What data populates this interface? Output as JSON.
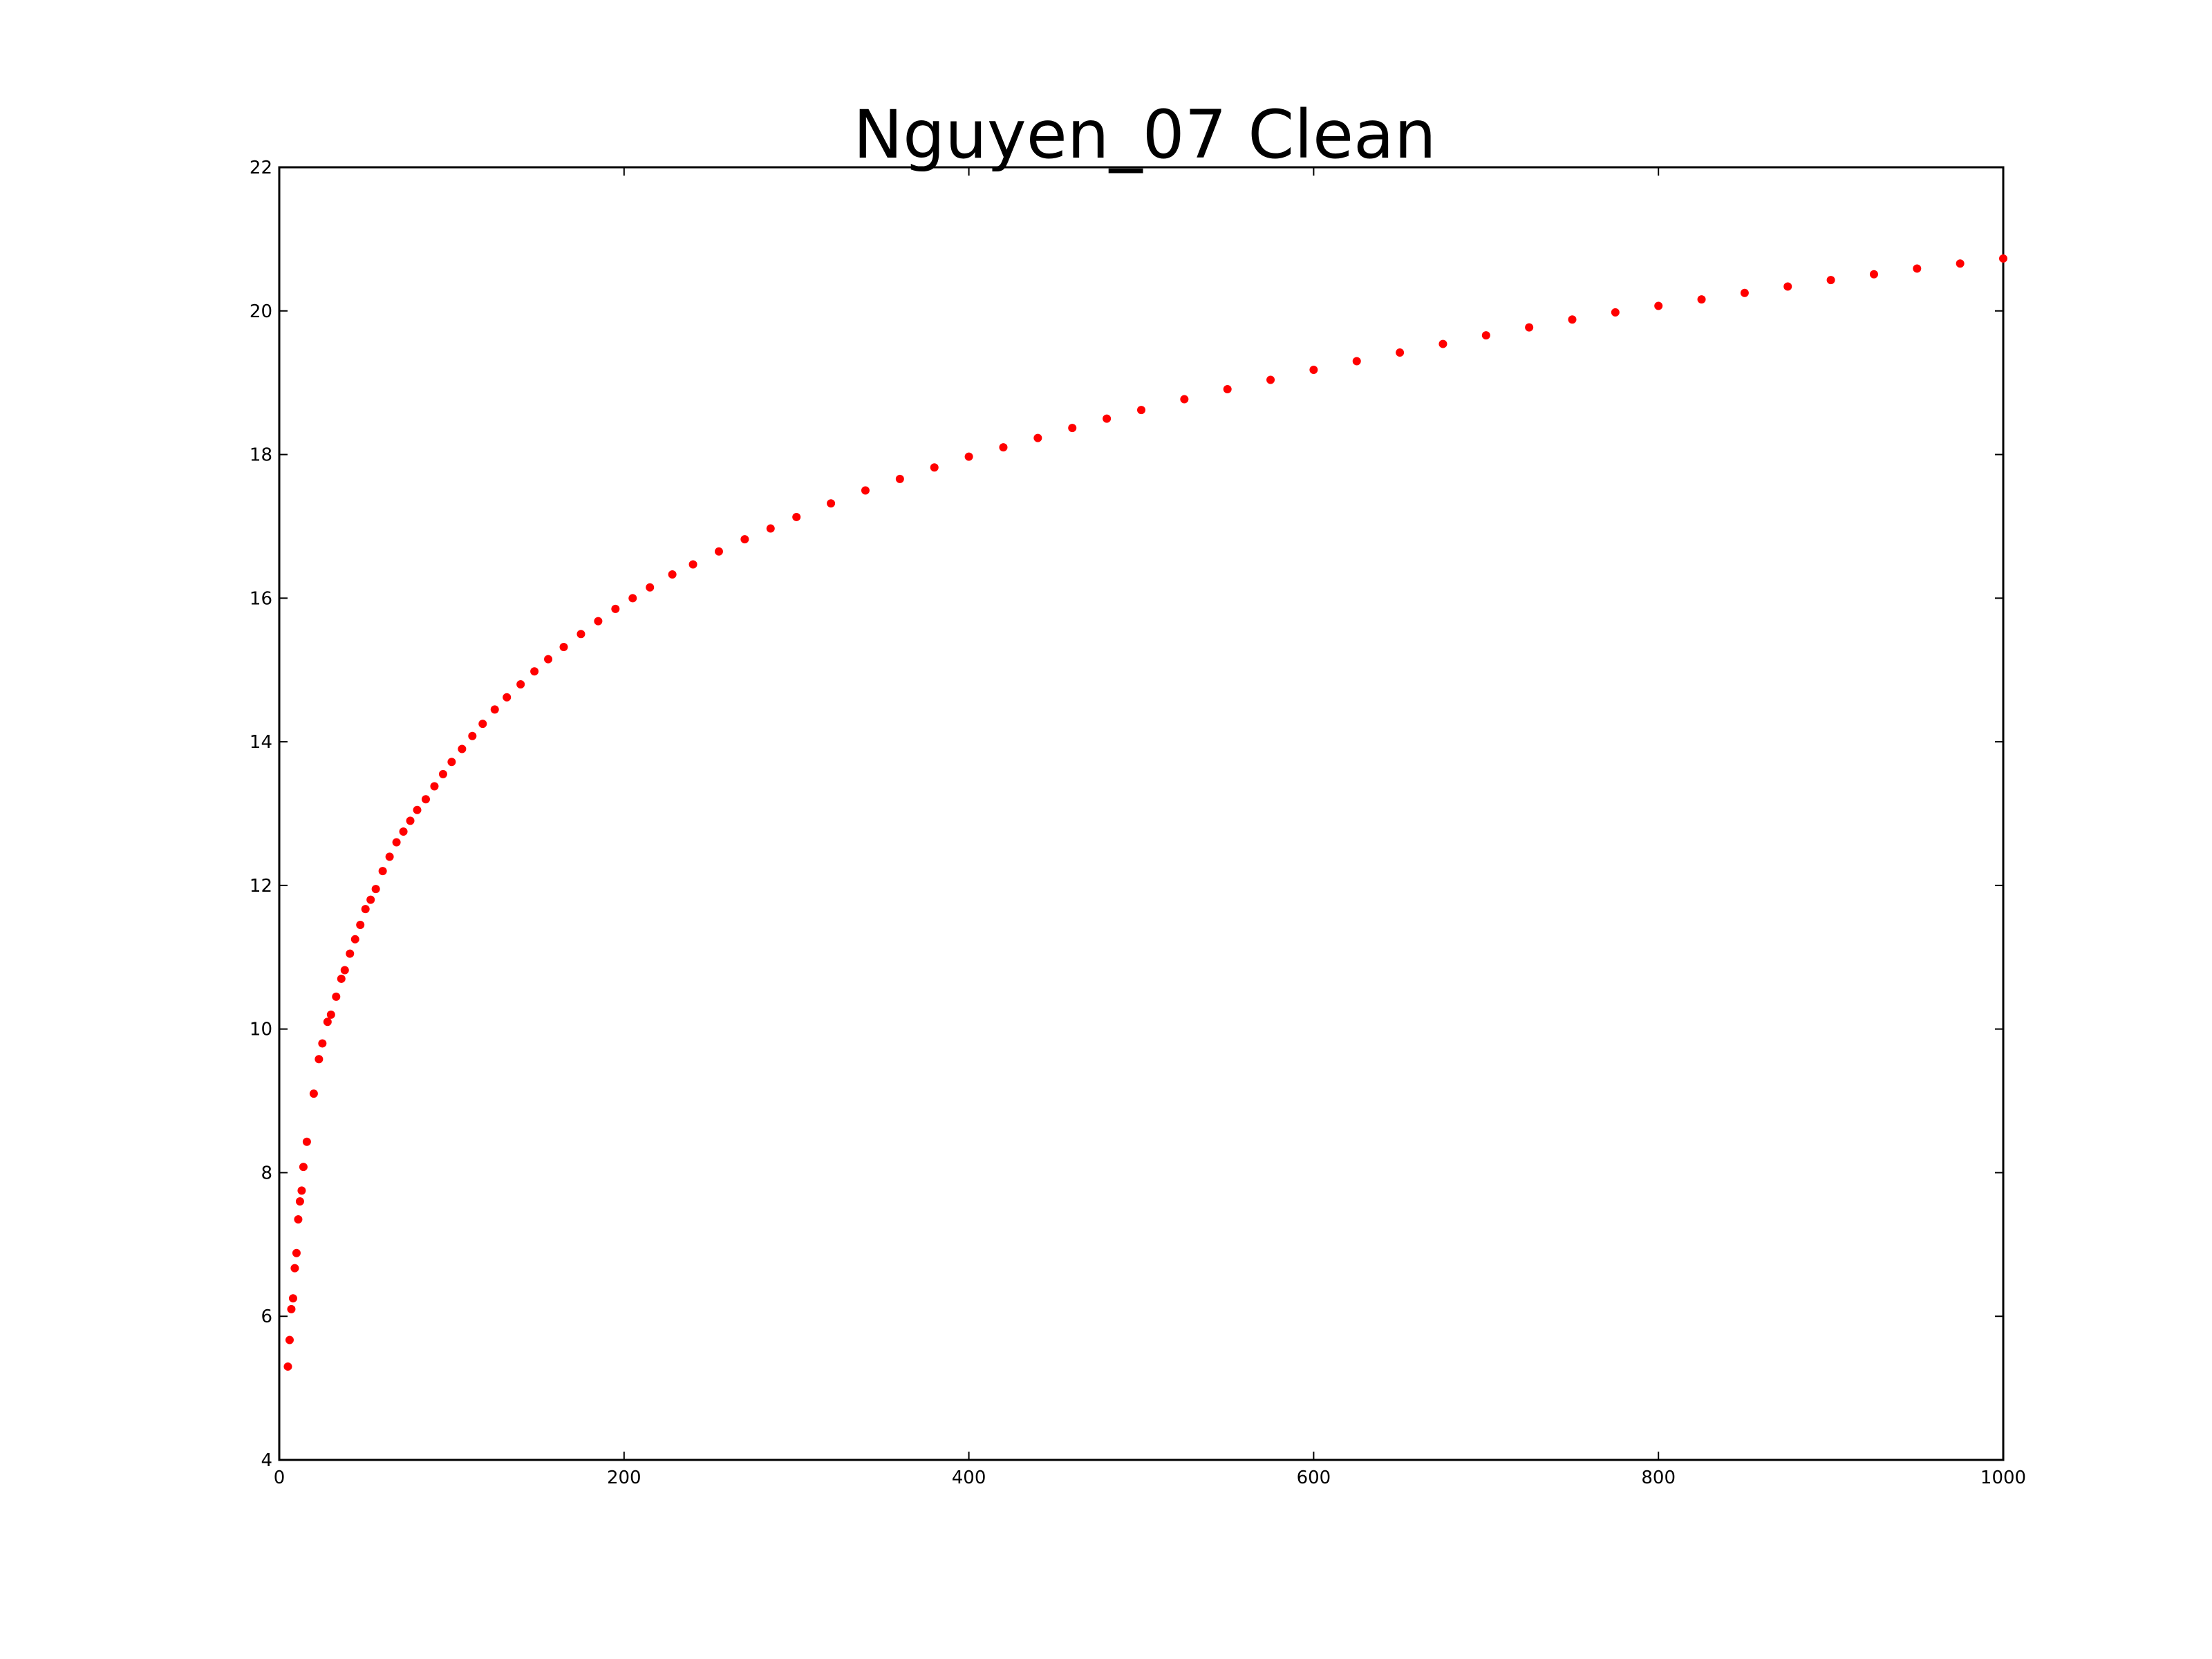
{
  "chart_data": {
    "type": "scatter",
    "title": "Nguyen_07 Clean",
    "xlabel": "",
    "ylabel": "",
    "xlim": [
      0,
      1000
    ],
    "ylim": [
      4,
      22
    ],
    "x_ticks": [
      "0",
      "200",
      "400",
      "600",
      "800",
      "1000"
    ],
    "y_ticks": [
      "4",
      "6",
      "8",
      "10",
      "12",
      "14",
      "16",
      "18",
      "20",
      "22"
    ],
    "grid": false,
    "legend": "none",
    "colors": {
      "marker": "#ff0000"
    },
    "series": [
      {
        "points": [
          [
            5,
            5.3
          ],
          [
            6,
            5.67
          ],
          [
            7,
            6.1
          ],
          [
            8,
            6.25
          ],
          [
            9,
            6.67
          ],
          [
            10,
            6.88
          ],
          [
            11,
            7.35
          ],
          [
            12,
            7.6
          ],
          [
            13,
            7.75
          ],
          [
            14,
            8.08
          ],
          [
            16,
            8.43
          ],
          [
            20,
            9.1
          ],
          [
            23,
            9.58
          ],
          [
            25,
            9.8
          ],
          [
            28,
            10.1
          ],
          [
            30,
            10.2
          ],
          [
            33,
            10.45
          ],
          [
            36,
            10.7
          ],
          [
            38,
            10.82
          ],
          [
            41,
            11.05
          ],
          [
            44,
            11.25
          ],
          [
            47,
            11.45
          ],
          [
            50,
            11.67
          ],
          [
            53,
            11.8
          ],
          [
            56,
            11.95
          ],
          [
            60,
            12.2
          ],
          [
            64,
            12.4
          ],
          [
            68,
            12.6
          ],
          [
            72,
            12.75
          ],
          [
            76,
            12.9
          ],
          [
            80,
            13.05
          ],
          [
            85,
            13.2
          ],
          [
            90,
            13.38
          ],
          [
            95,
            13.55
          ],
          [
            100,
            13.72
          ],
          [
            106,
            13.9
          ],
          [
            112,
            14.08
          ],
          [
            118,
            14.25
          ],
          [
            125,
            14.45
          ],
          [
            132,
            14.62
          ],
          [
            140,
            14.8
          ],
          [
            148,
            14.98
          ],
          [
            156,
            15.15
          ],
          [
            165,
            15.32
          ],
          [
            175,
            15.5
          ],
          [
            185,
            15.68
          ],
          [
            195,
            15.85
          ],
          [
            205,
            16.0
          ],
          [
            215,
            16.15
          ],
          [
            228,
            16.33
          ],
          [
            240,
            16.47
          ],
          [
            255,
            16.65
          ],
          [
            270,
            16.82
          ],
          [
            285,
            16.97
          ],
          [
            300,
            17.13
          ],
          [
            320,
            17.32
          ],
          [
            340,
            17.5
          ],
          [
            360,
            17.66
          ],
          [
            380,
            17.82
          ],
          [
            400,
            17.97
          ],
          [
            420,
            18.1
          ],
          [
            440,
            18.23
          ],
          [
            460,
            18.37
          ],
          [
            480,
            18.5
          ],
          [
            500,
            18.62
          ],
          [
            525,
            18.77
          ],
          [
            550,
            18.91
          ],
          [
            575,
            19.04
          ],
          [
            600,
            19.18
          ],
          [
            625,
            19.3
          ],
          [
            650,
            19.42
          ],
          [
            675,
            19.54
          ],
          [
            700,
            19.66
          ],
          [
            725,
            19.77
          ],
          [
            750,
            19.88
          ],
          [
            775,
            19.98
          ],
          [
            800,
            20.07
          ],
          [
            825,
            20.16
          ],
          [
            850,
            20.25
          ],
          [
            875,
            20.34
          ],
          [
            900,
            20.43
          ],
          [
            925,
            20.51
          ],
          [
            950,
            20.59
          ],
          [
            975,
            20.66
          ],
          [
            1000,
            20.73
          ]
        ]
      }
    ]
  }
}
